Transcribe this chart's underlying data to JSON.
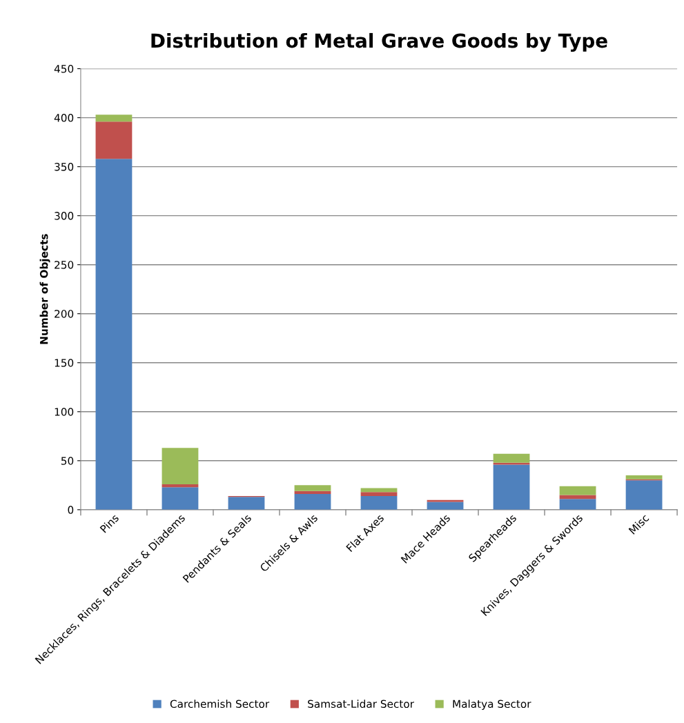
{
  "chart_data": {
    "type": "bar",
    "title": "Distribution of Metal Grave Goods by Type",
    "ylabel": "Number of Objects",
    "categories": [
      "Pins",
      "Necklaces, Rings, Bracelets & Diadems",
      "Pendants & Seals",
      "Chisels & Awls",
      "Flat Axes",
      "Mace Heads",
      "Spearheads",
      "Knives, Daggers & Swords",
      "Misc"
    ],
    "series": [
      {
        "name": "Carchemish Sector",
        "color": "#4f81bd",
        "values": [
          358,
          23,
          13,
          16,
          14,
          8,
          46,
          11,
          30
        ]
      },
      {
        "name": "Samsat-Lidar Sector",
        "color": "#c0504d",
        "values": [
          38,
          3,
          1,
          3,
          4,
          2,
          2,
          4,
          1
        ]
      },
      {
        "name": "Malatya Sector",
        "color": "#9bbb59",
        "values": [
          7,
          37,
          0,
          6,
          4,
          0,
          9,
          9,
          4
        ]
      }
    ],
    "stacked": true,
    "ylim": [
      0,
      450
    ],
    "yticks": [
      0,
      50,
      100,
      150,
      200,
      250,
      300,
      350,
      400,
      450
    ],
    "grid": "y",
    "legend": "bottom"
  }
}
